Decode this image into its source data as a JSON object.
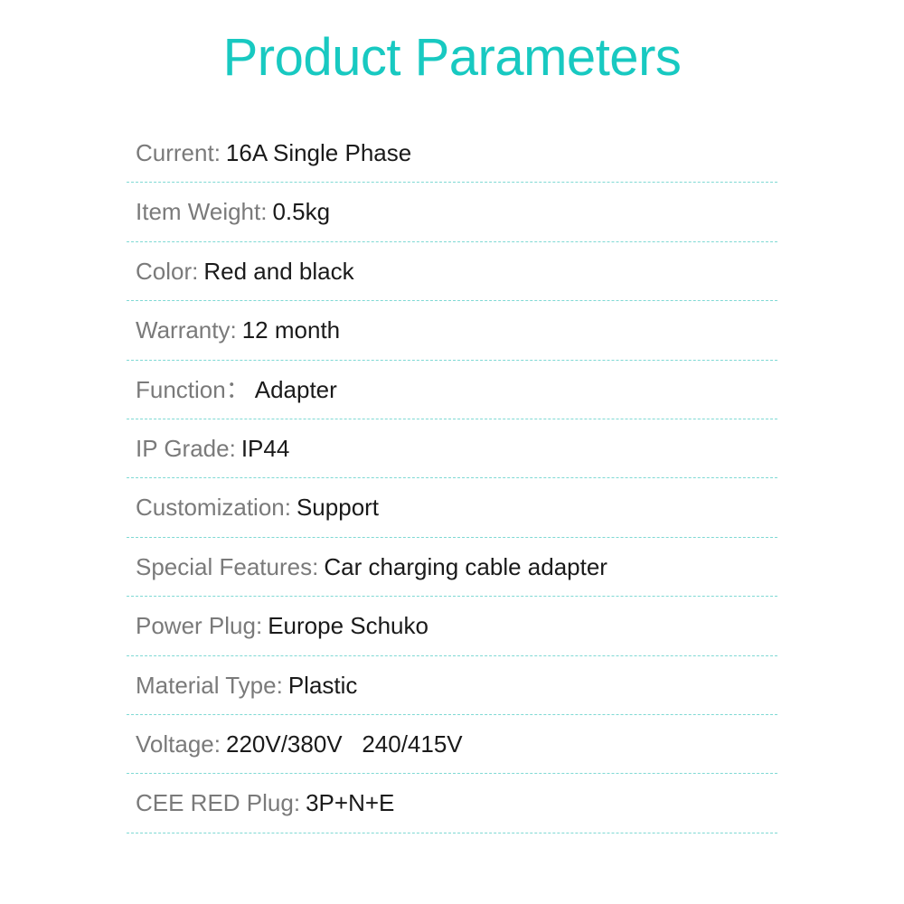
{
  "title": "Product Parameters",
  "colors": {
    "title": "#18c9c1",
    "label": "#7a7a7a",
    "value": "#1a1a1a",
    "divider": "#7fd9d4",
    "background": "#ffffff"
  },
  "typography": {
    "title_fontsize": 58,
    "row_fontsize": 26,
    "font_family": "Arial, Helvetica, sans-serif"
  },
  "rows": [
    {
      "label": "Current:",
      "value": "16A Single Phase"
    },
    {
      "label": "Item Weight:",
      "value": "0.5kg"
    },
    {
      "label": "Color:",
      "value": "Red and black"
    },
    {
      "label": "Warranty:",
      "value": "12 month"
    },
    {
      "label": "Function：",
      "value": "Adapter"
    },
    {
      "label": "IP Grade:",
      "value": "IP44"
    },
    {
      "label": "Customization:",
      "value": "Support"
    },
    {
      "label": "Special Features:",
      "value": "Car charging cable adapter"
    },
    {
      "label": "Power Plug:",
      "value": "Europe Schuko"
    },
    {
      "label": "Material Type: ",
      "value": "Plastic"
    },
    {
      "label": "Voltage:",
      "value": "220V/380V   240/415V"
    },
    {
      "label": "CEE RED Plug:",
      "value": "3P+N+E"
    }
  ]
}
